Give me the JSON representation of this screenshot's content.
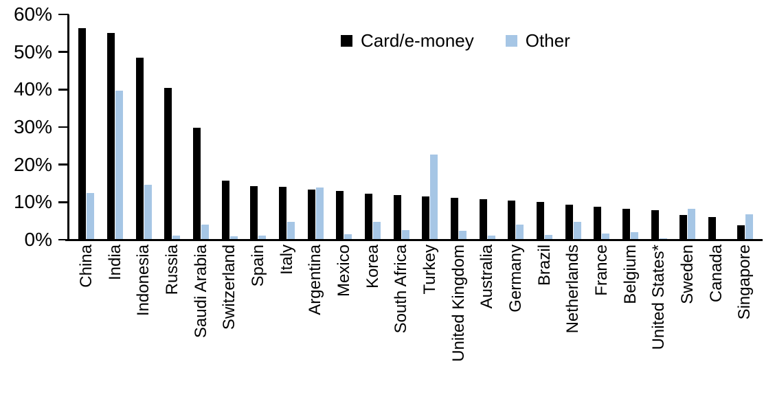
{
  "chart_data": {
    "type": "bar",
    "title": "",
    "xlabel": "",
    "ylabel": "",
    "ylim": [
      0,
      60
    ],
    "ytick_labels": [
      "60%",
      "50%",
      "40%",
      "30%",
      "20%",
      "10%",
      "0%"
    ],
    "grid": false,
    "legend_position": "top-center",
    "categories": [
      "China",
      "India",
      "Indonesia",
      "Russia",
      "Saudi Arabia",
      "Switzerland",
      "Spain",
      "Italy",
      "Argentina",
      "Mexico",
      "Korea",
      "South Africa",
      "Turkey",
      "United Kingdom",
      "Australia",
      "Germany",
      "Brazil",
      "Netherlands",
      "France",
      "Belgium",
      "United States*",
      "Sweden",
      "Canada",
      "Singapore"
    ],
    "series": [
      {
        "name": "Card/e-money",
        "color": "#000000",
        "values": [
          56.3,
          55.0,
          48.4,
          40.4,
          29.8,
          15.7,
          14.2,
          14.1,
          13.4,
          12.9,
          12.3,
          11.9,
          11.6,
          11.1,
          10.8,
          10.5,
          10.0,
          9.3,
          8.7,
          8.3,
          7.9,
          6.6,
          6.0,
          3.9
        ]
      },
      {
        "name": "Other",
        "color": "#a6c6e5",
        "values": [
          12.4,
          39.7,
          14.6,
          1.1,
          4.0,
          0.9,
          1.1,
          4.7,
          13.9,
          1.5,
          4.8,
          2.6,
          22.6,
          2.4,
          1.1,
          4.0,
          1.3,
          4.8,
          1.6,
          2.1,
          0.4,
          8.2,
          0.0,
          6.8
        ]
      }
    ]
  }
}
